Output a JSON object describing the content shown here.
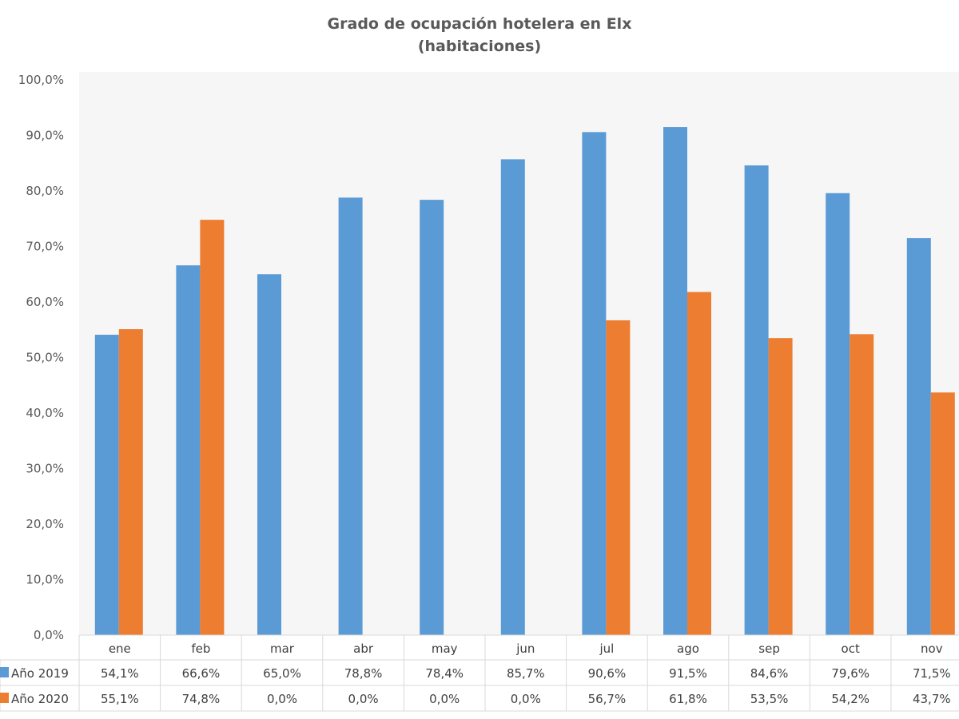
{
  "chart_data": {
    "type": "bar",
    "title": "Grado de ocupación hotelera en Elx",
    "subtitle": "(habitaciones)",
    "categories": [
      "ene",
      "feb",
      "mar",
      "abr",
      "may",
      "jun",
      "jul",
      "ago",
      "sep",
      "oct",
      "nov"
    ],
    "series": [
      {
        "name": "Año 2019",
        "color": "#5b9bd5",
        "values": [
          54.1,
          66.6,
          65.0,
          78.8,
          78.4,
          85.7,
          90.6,
          91.5,
          84.6,
          79.6,
          71.5
        ],
        "labels": [
          "54,1%",
          "66,6%",
          "65,0%",
          "78,8%",
          "78,4%",
          "85,7%",
          "90,6%",
          "91,5%",
          "84,6%",
          "79,6%",
          "71,5%"
        ]
      },
      {
        "name": "Año 2020",
        "color": "#ed7d31",
        "values": [
          55.1,
          74.8,
          0.0,
          0.0,
          0.0,
          0.0,
          56.7,
          61.8,
          53.5,
          54.2,
          43.7
        ],
        "labels": [
          "55,1%",
          "74,8%",
          "0,0%",
          "0,0%",
          "0,0%",
          "0,0%",
          "56,7%",
          "61,8%",
          "53,5%",
          "54,2%",
          "43,7%"
        ]
      }
    ],
    "ylim": [
      0,
      100
    ],
    "yticks": [
      "0,0%",
      "10,0%",
      "20,0%",
      "30,0%",
      "40,0%",
      "50,0%",
      "60,0%",
      "70,0%",
      "80,0%",
      "90,0%",
      "100,0%"
    ],
    "grid": false,
    "legend": "data-table"
  }
}
